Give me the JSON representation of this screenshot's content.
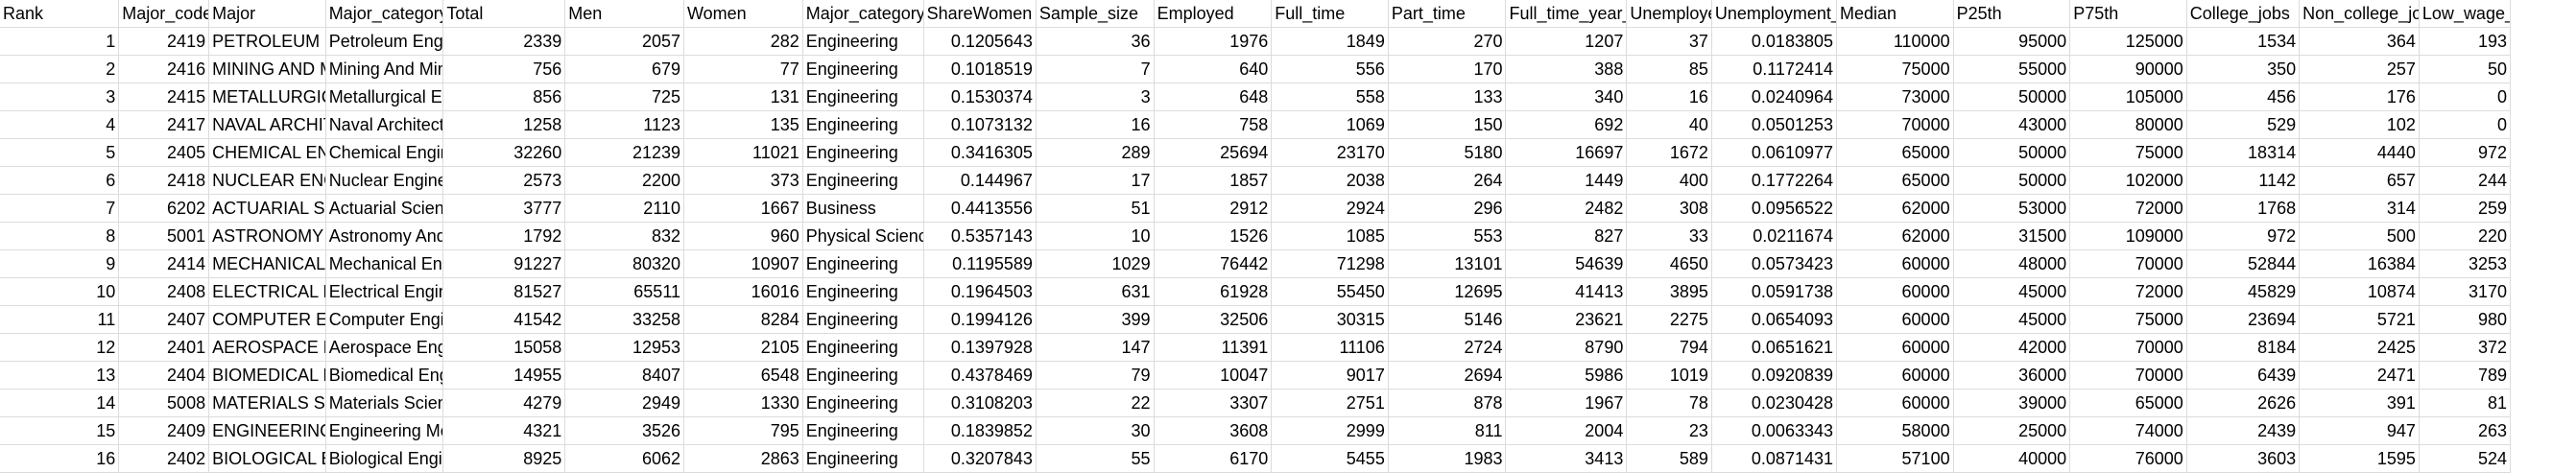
{
  "headers": [
    "Rank",
    "Major_code",
    "Major",
    "Major_category_full",
    "Total",
    "Men",
    "Women",
    "Major_category",
    "ShareWomen",
    "Sample_size",
    "Employed",
    "Full_time",
    "Part_time",
    "Full_time_year_round",
    "Unemployed",
    "Unemployment_rate",
    "Median",
    "P25th",
    "P75th",
    "College_jobs",
    "Non_college_jobs",
    "Low_wage_jobs"
  ],
  "rows": [
    [
      "1",
      "2419",
      "PETROLEUM ENGINEERING",
      "Petroleum Engineering",
      "2339",
      "2057",
      "282",
      "Engineering",
      "0.1205643",
      "36",
      "1976",
      "1849",
      "270",
      "1207",
      "37",
      "0.0183805",
      "110000",
      "95000",
      "125000",
      "1534",
      "364",
      "193"
    ],
    [
      "2",
      "2416",
      "MINING AND MINERAL ENGINEERING",
      "Mining And Mineral Engineering",
      "756",
      "679",
      "77",
      "Engineering",
      "0.1018519",
      "7",
      "640",
      "556",
      "170",
      "388",
      "85",
      "0.1172414",
      "75000",
      "55000",
      "90000",
      "350",
      "257",
      "50"
    ],
    [
      "3",
      "2415",
      "METALLURGICAL ENGINEERING",
      "Metallurgical Engineering",
      "856",
      "725",
      "131",
      "Engineering",
      "0.1530374",
      "3",
      "648",
      "558",
      "133",
      "340",
      "16",
      "0.0240964",
      "73000",
      "50000",
      "105000",
      "456",
      "176",
      "0"
    ],
    [
      "4",
      "2417",
      "NAVAL ARCHITECTURE AND MARINE ENGINEERING",
      "Naval Architecture And Marine Engineering",
      "1258",
      "1123",
      "135",
      "Engineering",
      "0.1073132",
      "16",
      "758",
      "1069",
      "150",
      "692",
      "40",
      "0.0501253",
      "70000",
      "43000",
      "80000",
      "529",
      "102",
      "0"
    ],
    [
      "5",
      "2405",
      "CHEMICAL ENGINEERING",
      "Chemical Engineering",
      "32260",
      "21239",
      "11021",
      "Engineering",
      "0.3416305",
      "289",
      "25694",
      "23170",
      "5180",
      "16697",
      "1672",
      "0.0610977",
      "65000",
      "50000",
      "75000",
      "18314",
      "4440",
      "972"
    ],
    [
      "6",
      "2418",
      "NUCLEAR ENGINEERING",
      "Nuclear Engineering",
      "2573",
      "2200",
      "373",
      "Engineering",
      "0.144967",
      "17",
      "1857",
      "2038",
      "264",
      "1449",
      "400",
      "0.1772264",
      "65000",
      "50000",
      "102000",
      "1142",
      "657",
      "244"
    ],
    [
      "7",
      "6202",
      "ACTUARIAL SCIENCE",
      "Actuarial Science",
      "3777",
      "2110",
      "1667",
      "Business",
      "0.4413556",
      "51",
      "2912",
      "2924",
      "296",
      "2482",
      "308",
      "0.0956522",
      "62000",
      "53000",
      "72000",
      "1768",
      "314",
      "259"
    ],
    [
      "8",
      "5001",
      "ASTRONOMY AND ASTROPHYSICS",
      "Astronomy And Astrophysics",
      "1792",
      "832",
      "960",
      "Physical Sciences",
      "0.5357143",
      "10",
      "1526",
      "1085",
      "553",
      "827",
      "33",
      "0.0211674",
      "62000",
      "31500",
      "109000",
      "972",
      "500",
      "220"
    ],
    [
      "9",
      "2414",
      "MECHANICAL ENGINEERING",
      "Mechanical Engineering",
      "91227",
      "80320",
      "10907",
      "Engineering",
      "0.1195589",
      "1029",
      "76442",
      "71298",
      "13101",
      "54639",
      "4650",
      "0.0573423",
      "60000",
      "48000",
      "70000",
      "52844",
      "16384",
      "3253"
    ],
    [
      "10",
      "2408",
      "ELECTRICAL ENGINEERING",
      "Electrical Engineering",
      "81527",
      "65511",
      "16016",
      "Engineering",
      "0.1964503",
      "631",
      "61928",
      "55450",
      "12695",
      "41413",
      "3895",
      "0.0591738",
      "60000",
      "45000",
      "72000",
      "45829",
      "10874",
      "3170"
    ],
    [
      "11",
      "2407",
      "COMPUTER ENGINEERING",
      "Computer Engineering",
      "41542",
      "33258",
      "8284",
      "Engineering",
      "0.1994126",
      "399",
      "32506",
      "30315",
      "5146",
      "23621",
      "2275",
      "0.0654093",
      "60000",
      "45000",
      "75000",
      "23694",
      "5721",
      "980"
    ],
    [
      "12",
      "2401",
      "AEROSPACE ENGINEERING",
      "Aerospace Engineering",
      "15058",
      "12953",
      "2105",
      "Engineering",
      "0.1397928",
      "147",
      "11391",
      "11106",
      "2724",
      "8790",
      "794",
      "0.0651621",
      "60000",
      "42000",
      "70000",
      "8184",
      "2425",
      "372"
    ],
    [
      "13",
      "2404",
      "BIOMEDICAL ENGINEERING",
      "Biomedical Engineering",
      "14955",
      "8407",
      "6548",
      "Engineering",
      "0.4378469",
      "79",
      "10047",
      "9017",
      "2694",
      "5986",
      "1019",
      "0.0920839",
      "60000",
      "36000",
      "70000",
      "6439",
      "2471",
      "789"
    ],
    [
      "14",
      "5008",
      "MATERIALS SCIENCE",
      "Materials Science",
      "4279",
      "2949",
      "1330",
      "Engineering",
      "0.3108203",
      "22",
      "3307",
      "2751",
      "878",
      "1967",
      "78",
      "0.0230428",
      "60000",
      "39000",
      "65000",
      "2626",
      "391",
      "81"
    ],
    [
      "15",
      "2409",
      "ENGINEERING MECHANICS PHYSICS AND SCIENCE",
      "Engineering Mechanics Physics And Science",
      "4321",
      "3526",
      "795",
      "Engineering",
      "0.1839852",
      "30",
      "3608",
      "2999",
      "811",
      "2004",
      "23",
      "0.0063343",
      "58000",
      "25000",
      "74000",
      "2439",
      "947",
      "263"
    ],
    [
      "16",
      "2402",
      "BIOLOGICAL ENGINEERING",
      "Biological Engineering",
      "8925",
      "6062",
      "2863",
      "Engineering",
      "0.3207843",
      "55",
      "6170",
      "5455",
      "1983",
      "3413",
      "589",
      "0.0871431",
      "57100",
      "40000",
      "76000",
      "3603",
      "1595",
      "524"
    ]
  ]
}
